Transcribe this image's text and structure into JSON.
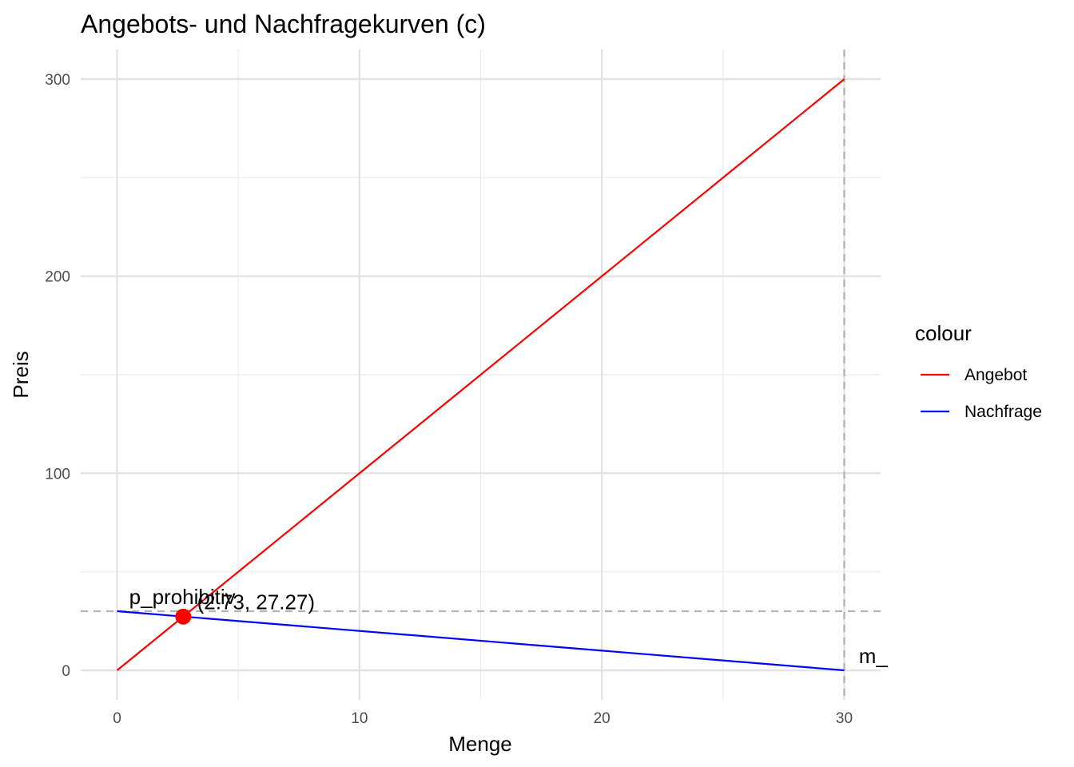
{
  "chart_data": {
    "type": "line",
    "title": "Angebots- und Nachfragekurven (c)",
    "xlabel": "Menge",
    "ylabel": "Preis",
    "xlim": [
      -1.5,
      31.5
    ],
    "ylim": [
      -15,
      315
    ],
    "x_ticks": [
      0,
      10,
      20,
      30
    ],
    "y_ticks": [
      0,
      100,
      200,
      300
    ],
    "x_minor_grid": [
      5,
      15,
      25
    ],
    "y_minor_grid": [
      50,
      150,
      250
    ],
    "grid": true,
    "legend": {
      "title": "colour",
      "position": "right",
      "entries": [
        {
          "label": "Angebot",
          "color": "#ff0000"
        },
        {
          "label": "Nachfrage",
          "color": "#0000ff"
        }
      ]
    },
    "series": [
      {
        "name": "Angebot",
        "color": "#ff0000",
        "x": [
          0,
          30
        ],
        "y": [
          0,
          300
        ]
      },
      {
        "name": "Nachfrage",
        "color": "#0000ff",
        "x": [
          0,
          30
        ],
        "y": [
          30,
          0
        ]
      }
    ],
    "reference_lines": [
      {
        "orientation": "horizontal",
        "value": 30,
        "style": "dashed",
        "color": "#b3b3b3"
      },
      {
        "orientation": "vertical",
        "value": 30,
        "style": "dashed",
        "color": "#b3b3b3"
      }
    ],
    "points": [
      {
        "x": 2.73,
        "y": 27.27,
        "color": "#ff0000"
      }
    ],
    "annotations": [
      {
        "text": "p_prohibitiv",
        "x": 0.5,
        "y": 30
      },
      {
        "text": "(2.73, 27.27)",
        "x": 3.3,
        "y": 27.27
      },
      {
        "text": "m_",
        "x": 30.6,
        "y": 0
      }
    ]
  }
}
